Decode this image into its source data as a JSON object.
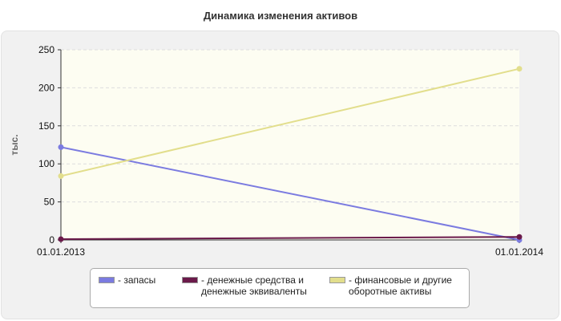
{
  "chart_data": {
    "type": "line",
    "title": "Динамика изменения активов",
    "ylabel": "тыс.",
    "xlabel": "",
    "categories": [
      "01.01.2013",
      "01.01.2014"
    ],
    "ylim": [
      0,
      250
    ],
    "yticks": [
      0,
      50,
      100,
      150,
      200,
      250
    ],
    "grid": true,
    "legend_position": "bottom",
    "series": [
      {
        "name": "- запасы",
        "values": [
          122,
          0
        ],
        "color": "#7b7be0"
      },
      {
        "name": "- денежные средства и\nденежные эквиваленты",
        "values": [
          1,
          4
        ],
        "color": "#6b1a4a"
      },
      {
        "name": "- финансовые и другие\nоборотные активы",
        "values": [
          84,
          225
        ],
        "color": "#e2de8c"
      }
    ]
  },
  "colors": {
    "panel_background": "#f1f1f1",
    "plot_background": "#fdfdf2",
    "grid": "#dddddd",
    "axis": "#333333"
  }
}
